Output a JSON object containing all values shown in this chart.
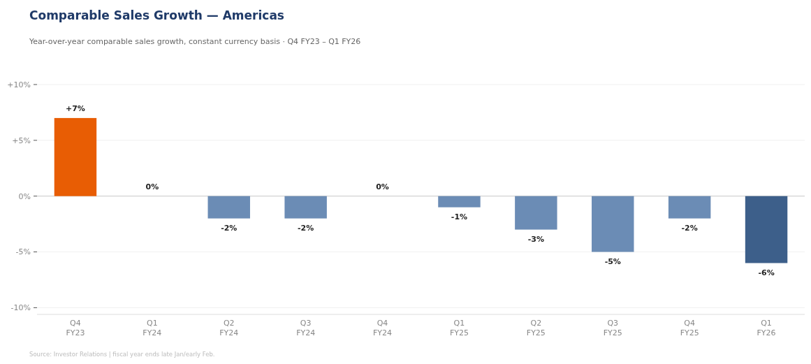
{
  "chart_data": {
    "type": "bar",
    "title": "Comparable Sales Growth — Americas",
    "subtitle": "Year-over-year comparable sales growth, constant currency basis  ·  Q4 FY23 – Q1 FY26",
    "categories": [
      "Q4\nFY23",
      "Q1\nFY24",
      "Q2\nFY24",
      "Q3\nFY24",
      "Q4\nFY24",
      "Q1\nFY25",
      "Q2\nFY25",
      "Q3\nFY25",
      "Q4\nFY25",
      "Q1\nFY26"
    ],
    "values": [
      7,
      0,
      -2,
      -2,
      0,
      -1,
      -3,
      -5,
      -2,
      -6
    ],
    "colors": [
      "#e85d04",
      "#6b8cb5",
      "#6b8cb5",
      "#6b8cb5",
      "#6b8cb5",
      "#6b8cb5",
      "#6b8cb5",
      "#6b8cb5",
      "#6b8cb5",
      "#3d5f8a"
    ],
    "value_labels": [
      "+7%",
      "0%",
      "-2%",
      "-2%",
      "0%",
      "-1%",
      "-3%",
      "-5%",
      "-2%",
      "-6%"
    ],
    "ylim": [
      -10.6,
      10
    ],
    "yticks": [
      {
        "value": 10,
        "label": "+10%"
      },
      {
        "value": 5,
        "label": "+5%"
      },
      {
        "value": 0,
        "label": "0%"
      },
      {
        "value": -5,
        "label": "-5%"
      },
      {
        "value": -10,
        "label": "-10%"
      }
    ],
    "grid": "y",
    "ref_lines": [
      {
        "axis": "y",
        "value": 0,
        "color": "#cccccc"
      }
    ],
    "annotations": [
      "Source: Investor Relations  |  fiscal year ends late Jan/early Feb."
    ]
  }
}
